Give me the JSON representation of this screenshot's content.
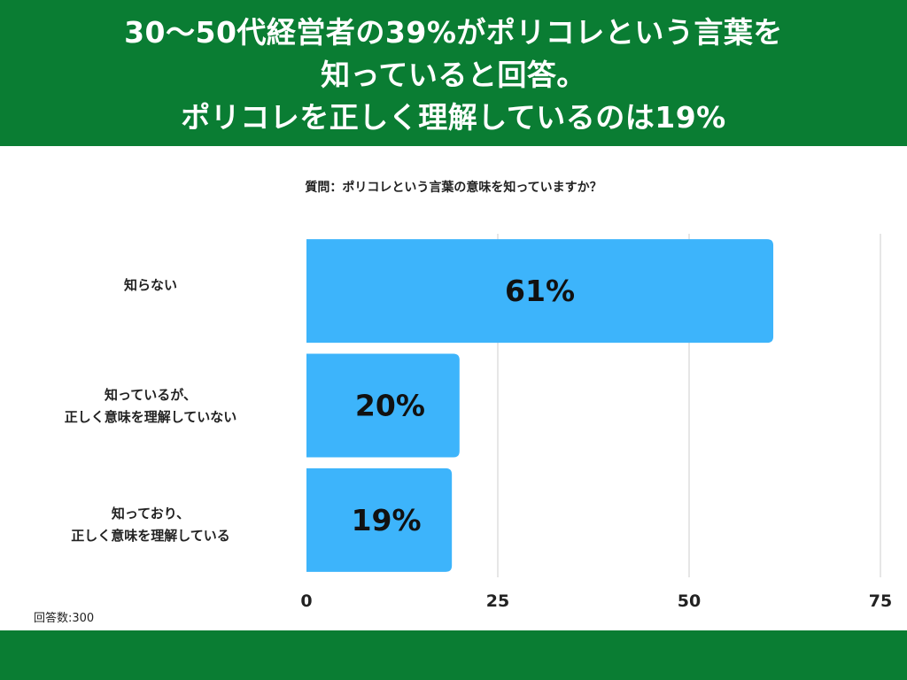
{
  "header": {
    "title_lines": [
      "30〜50代経営者の39%がポリコレという言葉を",
      "知っていると回答。",
      "ポリコレを正しく理解しているのは19%"
    ]
  },
  "question": "質問：ポリコレという言葉の意味を知っていますか？",
  "respondents": "回答数:300",
  "colors": {
    "header_bg": "#0a7d33",
    "bar": "#3db4fb",
    "grid": "#cccccc"
  },
  "chart_data": {
    "type": "bar",
    "orientation": "horizontal",
    "categories": [
      [
        "知らない"
      ],
      [
        "知っているが、",
        "正しく意味を理解していない"
      ],
      [
        "知っており、",
        "正しく意味を理解している"
      ]
    ],
    "values": [
      61,
      20,
      19
    ],
    "value_labels": [
      "61%",
      "20%",
      "19%"
    ],
    "xlim": [
      0,
      75
    ],
    "xticks": [
      0,
      25,
      50,
      75
    ],
    "grid": true,
    "title": "",
    "xlabel": "",
    "ylabel": ""
  }
}
